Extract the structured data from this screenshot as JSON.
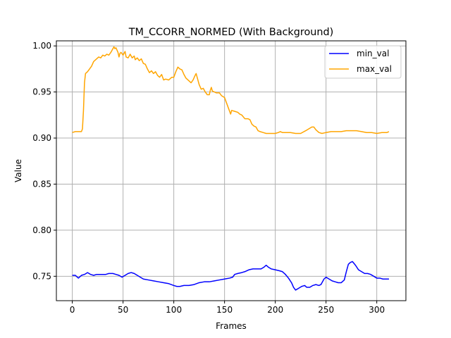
{
  "chart_data": {
    "type": "line",
    "title": "TM_CCORR_NORMED (With Background)",
    "xlabel": "Frames",
    "ylabel": "Value",
    "xlim": [
      -15.7,
      328.7
    ],
    "ylim": [
      0.7235,
      1.0055
    ],
    "xticks": [
      0,
      50,
      100,
      150,
      200,
      250,
      300
    ],
    "yticks": [
      0.75,
      0.8,
      0.85,
      0.9,
      0.95,
      1.0
    ],
    "xtick_labels": [
      "0",
      "50",
      "100",
      "150",
      "200",
      "250",
      "300"
    ],
    "ytick_labels": [
      "0.75",
      "0.80",
      "0.85",
      "0.90",
      "0.95",
      "1.00"
    ],
    "grid": true,
    "legend_position": "upper right",
    "series": [
      {
        "name": "min_val",
        "color": "#0000ff",
        "points": [
          [
            0,
            0.751
          ],
          [
            3,
            0.751
          ],
          [
            6,
            0.748
          ],
          [
            9,
            0.751
          ],
          [
            12,
            0.752
          ],
          [
            15,
            0.754
          ],
          [
            18,
            0.752
          ],
          [
            21,
            0.751
          ],
          [
            24,
            0.752
          ],
          [
            27,
            0.752
          ],
          [
            30,
            0.752
          ],
          [
            33,
            0.752
          ],
          [
            36,
            0.753
          ],
          [
            40,
            0.753
          ],
          [
            43,
            0.752
          ],
          [
            46,
            0.751
          ],
          [
            49,
            0.749
          ],
          [
            52,
            0.751
          ],
          [
            55,
            0.753
          ],
          [
            58,
            0.754
          ],
          [
            61,
            0.753
          ],
          [
            64,
            0.751
          ],
          [
            67,
            0.749
          ],
          [
            70,
            0.747
          ],
          [
            75,
            0.746
          ],
          [
            80,
            0.745
          ],
          [
            85,
            0.744
          ],
          [
            90,
            0.743
          ],
          [
            95,
            0.742
          ],
          [
            100,
            0.74
          ],
          [
            103,
            0.739
          ],
          [
            106,
            0.739
          ],
          [
            110,
            0.74
          ],
          [
            115,
            0.74
          ],
          [
            120,
            0.741
          ],
          [
            125,
            0.743
          ],
          [
            130,
            0.744
          ],
          [
            135,
            0.744
          ],
          [
            140,
            0.745
          ],
          [
            145,
            0.746
          ],
          [
            150,
            0.747
          ],
          [
            155,
            0.748
          ],
          [
            158,
            0.749
          ],
          [
            160,
            0.752
          ],
          [
            163,
            0.753
          ],
          [
            167,
            0.754
          ],
          [
            170,
            0.755
          ],
          [
            174,
            0.757
          ],
          [
            178,
            0.758
          ],
          [
            182,
            0.758
          ],
          [
            186,
            0.758
          ],
          [
            189,
            0.76
          ],
          [
            191,
            0.762
          ],
          [
            193,
            0.76
          ],
          [
            196,
            0.758
          ],
          [
            200,
            0.757
          ],
          [
            204,
            0.756
          ],
          [
            207,
            0.755
          ],
          [
            210,
            0.752
          ],
          [
            213,
            0.748
          ],
          [
            216,
            0.743
          ],
          [
            218,
            0.738
          ],
          [
            220,
            0.735
          ],
          [
            223,
            0.737
          ],
          [
            226,
            0.739
          ],
          [
            229,
            0.74
          ],
          [
            231,
            0.738
          ],
          [
            234,
            0.738
          ],
          [
            237,
            0.74
          ],
          [
            240,
            0.741
          ],
          [
            243,
            0.74
          ],
          [
            245,
            0.741
          ],
          [
            248,
            0.747
          ],
          [
            250,
            0.749
          ],
          [
            253,
            0.747
          ],
          [
            256,
            0.745
          ],
          [
            259,
            0.744
          ],
          [
            262,
            0.743
          ],
          [
            265,
            0.743
          ],
          [
            268,
            0.746
          ],
          [
            270,
            0.755
          ],
          [
            272,
            0.763
          ],
          [
            274,
            0.765
          ],
          [
            276,
            0.766
          ],
          [
            279,
            0.762
          ],
          [
            282,
            0.757
          ],
          [
            285,
            0.755
          ],
          [
            288,
            0.753
          ],
          [
            291,
            0.753
          ],
          [
            294,
            0.752
          ],
          [
            297,
            0.75
          ],
          [
            300,
            0.748
          ],
          [
            303,
            0.748
          ],
          [
            306,
            0.747
          ],
          [
            309,
            0.747
          ],
          [
            312,
            0.747
          ]
        ]
      },
      {
        "name": "max_val",
        "color": "#ffa500",
        "points": [
          [
            0,
            0.906
          ],
          [
            3,
            0.907
          ],
          [
            6,
            0.907
          ],
          [
            9,
            0.907
          ],
          [
            10,
            0.91
          ],
          [
            11,
            0.93
          ],
          [
            12,
            0.96
          ],
          [
            13,
            0.97
          ],
          [
            15,
            0.972
          ],
          [
            17,
            0.975
          ],
          [
            19,
            0.978
          ],
          [
            21,
            0.983
          ],
          [
            23,
            0.985
          ],
          [
            26,
            0.988
          ],
          [
            28,
            0.987
          ],
          [
            30,
            0.99
          ],
          [
            32,
            0.989
          ],
          [
            34,
            0.991
          ],
          [
            36,
            0.99
          ],
          [
            38,
            0.993
          ],
          [
            39,
            0.995
          ],
          [
            41,
            0.999
          ],
          [
            42,
            0.997
          ],
          [
            43,
            0.998
          ],
          [
            45,
            0.993
          ],
          [
            46,
            0.988
          ],
          [
            47,
            0.992
          ],
          [
            48,
            0.993
          ],
          [
            50,
            0.99
          ],
          [
            52,
            0.994
          ],
          [
            53,
            0.988
          ],
          [
            55,
            0.987
          ],
          [
            57,
            0.991
          ],
          [
            59,
            0.987
          ],
          [
            61,
            0.989
          ],
          [
            62,
            0.985
          ],
          [
            64,
            0.987
          ],
          [
            66,
            0.984
          ],
          [
            68,
            0.986
          ],
          [
            70,
            0.981
          ],
          [
            72,
            0.98
          ],
          [
            74,
            0.975
          ],
          [
            76,
            0.971
          ],
          [
            78,
            0.973
          ],
          [
            80,
            0.97
          ],
          [
            82,
            0.972
          ],
          [
            84,
            0.968
          ],
          [
            86,
            0.966
          ],
          [
            88,
            0.969
          ],
          [
            90,
            0.963
          ],
          [
            92,
            0.964
          ],
          [
            95,
            0.963
          ],
          [
            98,
            0.966
          ],
          [
            100,
            0.966
          ],
          [
            102,
            0.972
          ],
          [
            104,
            0.977
          ],
          [
            106,
            0.975
          ],
          [
            108,
            0.974
          ],
          [
            110,
            0.969
          ],
          [
            112,
            0.965
          ],
          [
            114,
            0.963
          ],
          [
            117,
            0.96
          ],
          [
            119,
            0.963
          ],
          [
            121,
            0.968
          ],
          [
            122,
            0.97
          ],
          [
            123,
            0.966
          ],
          [
            125,
            0.958
          ],
          [
            127,
            0.953
          ],
          [
            129,
            0.954
          ],
          [
            131,
            0.95
          ],
          [
            133,
            0.947
          ],
          [
            135,
            0.947
          ],
          [
            136,
            0.952
          ],
          [
            137,
            0.955
          ],
          [
            138,
            0.951
          ],
          [
            140,
            0.95
          ],
          [
            142,
            0.949
          ],
          [
            145,
            0.949
          ],
          [
            147,
            0.946
          ],
          [
            150,
            0.944
          ],
          [
            152,
            0.938
          ],
          [
            154,
            0.932
          ],
          [
            156,
            0.926
          ],
          [
            157,
            0.93
          ],
          [
            160,
            0.929
          ],
          [
            163,
            0.928
          ],
          [
            165,
            0.926
          ],
          [
            167,
            0.925
          ],
          [
            170,
            0.921
          ],
          [
            173,
            0.921
          ],
          [
            175,
            0.92
          ],
          [
            177,
            0.915
          ],
          [
            179,
            0.913
          ],
          [
            181,
            0.912
          ],
          [
            183,
            0.908
          ],
          [
            185,
            0.907
          ],
          [
            188,
            0.906
          ],
          [
            191,
            0.905
          ],
          [
            195,
            0.905
          ],
          [
            200,
            0.905
          ],
          [
            203,
            0.906
          ],
          [
            205,
            0.907
          ],
          [
            207,
            0.906
          ],
          [
            210,
            0.906
          ],
          [
            215,
            0.906
          ],
          [
            220,
            0.905
          ],
          [
            225,
            0.905
          ],
          [
            230,
            0.908
          ],
          [
            233,
            0.91
          ],
          [
            236,
            0.912
          ],
          [
            238,
            0.912
          ],
          [
            240,
            0.909
          ],
          [
            243,
            0.906
          ],
          [
            246,
            0.905
          ],
          [
            250,
            0.906
          ],
          [
            255,
            0.907
          ],
          [
            260,
            0.907
          ],
          [
            265,
            0.907
          ],
          [
            270,
            0.908
          ],
          [
            275,
            0.908
          ],
          [
            280,
            0.908
          ],
          [
            285,
            0.907
          ],
          [
            290,
            0.906
          ],
          [
            295,
            0.906
          ],
          [
            300,
            0.905
          ],
          [
            305,
            0.906
          ],
          [
            310,
            0.906
          ],
          [
            312,
            0.907
          ]
        ]
      }
    ]
  }
}
